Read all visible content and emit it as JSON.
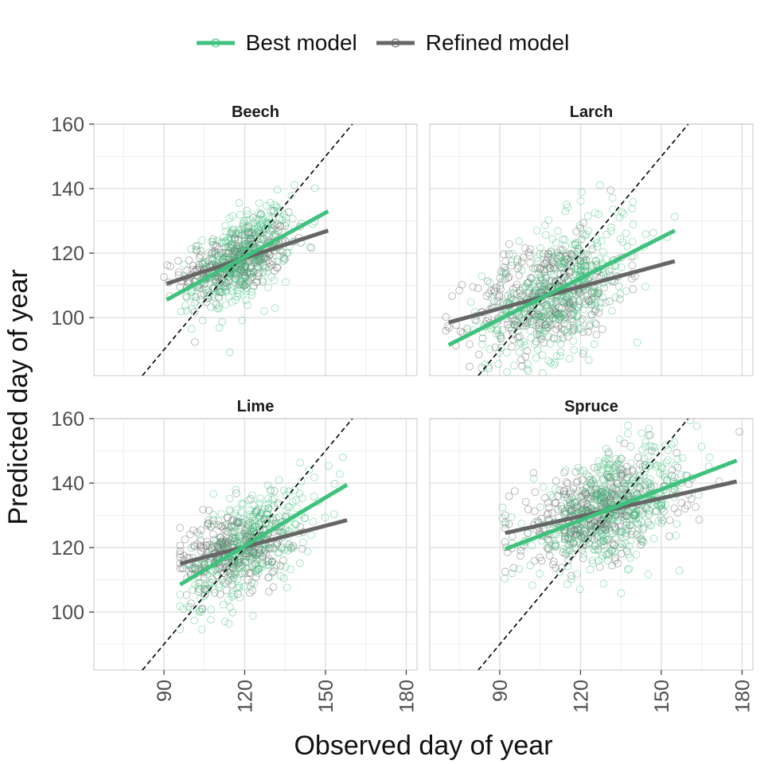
{
  "chart_data": {
    "type": "scatter",
    "xlabel": "Observed day of year",
    "ylabel": "Predicted day of year",
    "xlim": [
      64,
      184
    ],
    "ylim": [
      82,
      160
    ],
    "x_ticks": [
      90,
      120,
      150,
      180
    ],
    "y_ticks": [
      100,
      120,
      140,
      160
    ],
    "grid": true,
    "legend_position": "top",
    "reference_line": "1:1 dashed",
    "series": [
      {
        "name": "Best model",
        "color": "#3fc27d"
      },
      {
        "name": "Refined model",
        "color": "#666666"
      }
    ],
    "panels": [
      {
        "title": "Beech",
        "best": {
          "fit": [
            [
              91,
              105.5
            ],
            [
              151,
              133
            ]
          ],
          "x_range": [
            91,
            151
          ],
          "center": [
            119,
            118
          ],
          "sd_x": 9,
          "sd_y": 7,
          "n": 360
        },
        "refined": {
          "fit": [
            [
              91,
              110.5
            ],
            [
              151,
              127
            ]
          ],
          "x_range": [
            90,
            151
          ],
          "center": [
            117,
            117
          ],
          "sd_x": 10,
          "sd_y": 5,
          "n": 360
        }
      },
      {
        "title": "Larch",
        "best": {
          "fit": [
            [
              71,
              91.5
            ],
            [
              155,
              127
            ]
          ],
          "x_range": [
            72,
            155
          ],
          "center": [
            112,
            108
          ],
          "sd_x": 14,
          "sd_y": 10,
          "n": 420
        },
        "refined": {
          "fit": [
            [
              71,
              98.5
            ],
            [
              155,
              117.5
            ]
          ],
          "x_range": [
            70,
            155
          ],
          "center": [
            108,
            106
          ],
          "sd_x": 14,
          "sd_y": 8,
          "n": 420
        }
      },
      {
        "title": "Lime",
        "best": {
          "fit": [
            [
              96,
              108.5
            ],
            [
              158,
              139.5
            ]
          ],
          "x_range": [
            96,
            159
          ],
          "center": [
            122,
            121
          ],
          "sd_x": 12,
          "sd_y": 8,
          "n": 340
        },
        "refined": {
          "fit": [
            [
              96,
              115
            ],
            [
              158,
              128.5
            ]
          ],
          "x_range": [
            96,
            159
          ],
          "center": [
            116,
            120
          ],
          "sd_x": 10,
          "sd_y": 6,
          "n": 340
        }
      },
      {
        "title": "Spruce",
        "best": {
          "fit": [
            [
              92,
              119.5
            ],
            [
              178,
              147
            ]
          ],
          "x_range": [
            91,
            179
          ],
          "center": [
            132,
            132
          ],
          "sd_x": 15,
          "sd_y": 8,
          "n": 460
        },
        "refined": {
          "fit": [
            [
              92,
              124.5
            ],
            [
              178,
              140.5
            ]
          ],
          "x_range": [
            92,
            179
          ],
          "center": [
            126,
            130
          ],
          "sd_x": 15,
          "sd_y": 7,
          "n": 460
        }
      }
    ]
  }
}
